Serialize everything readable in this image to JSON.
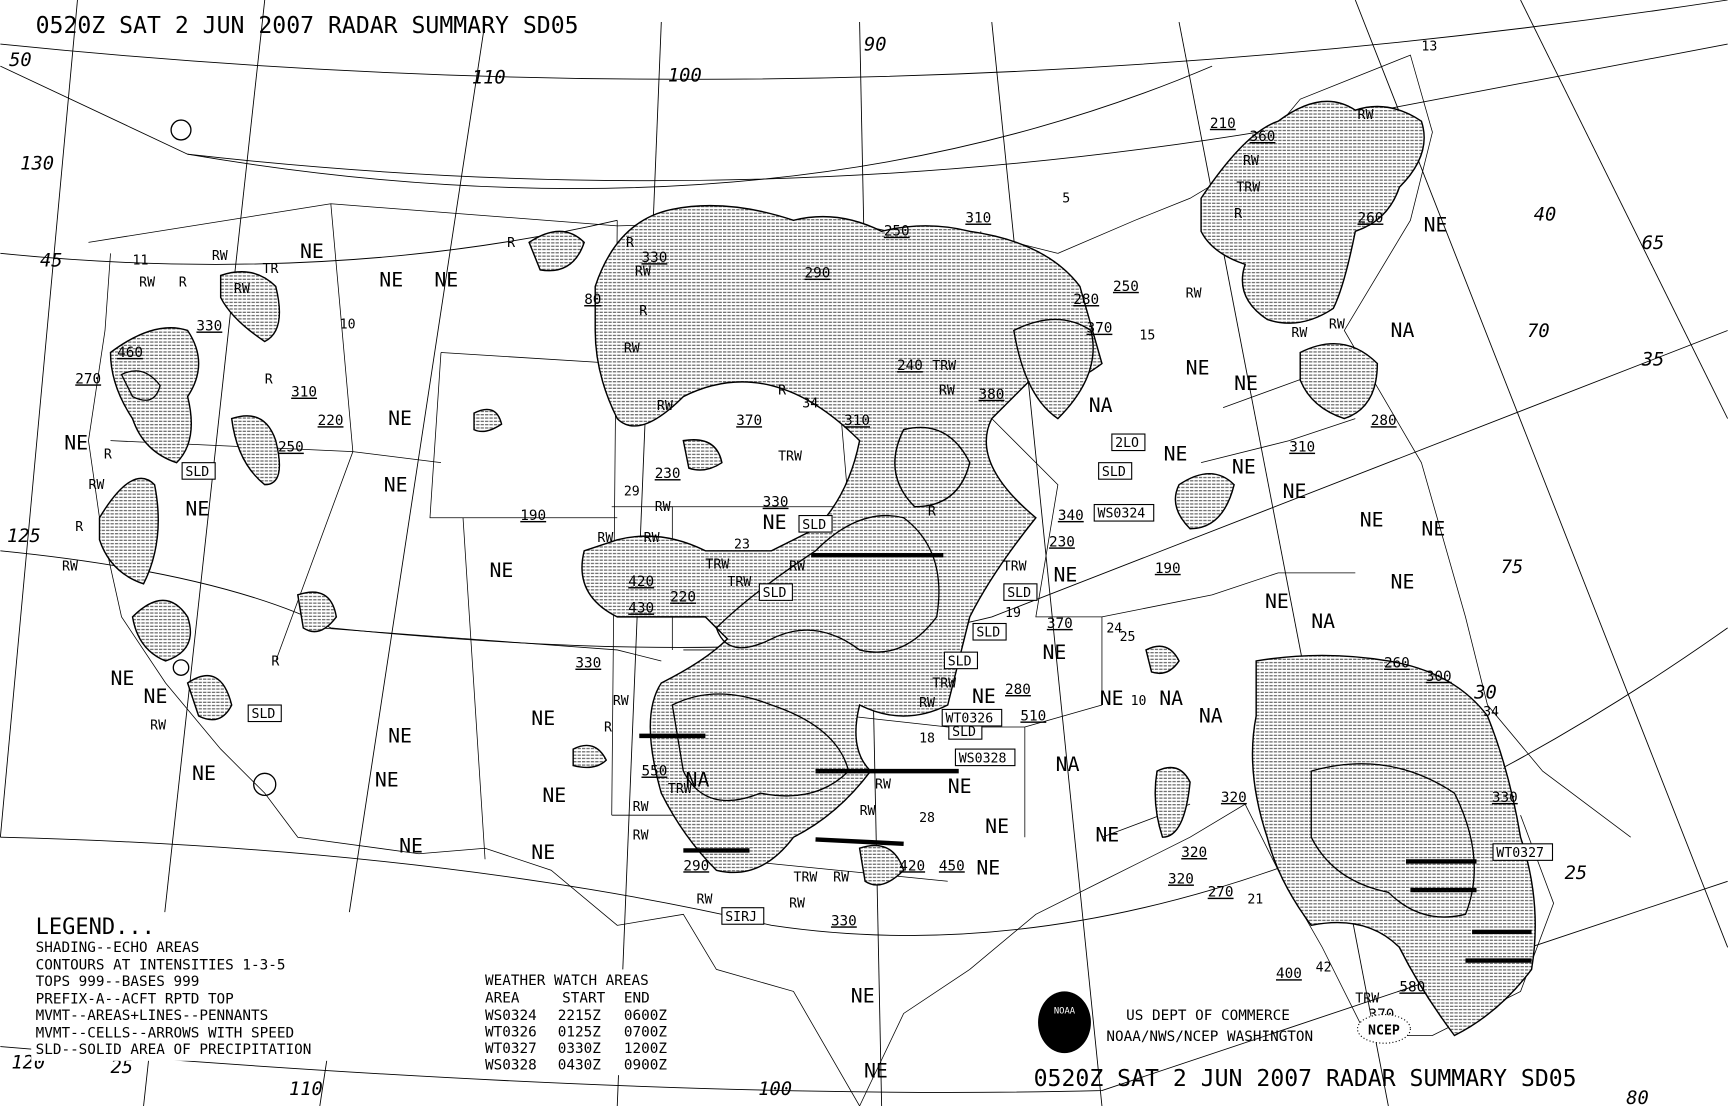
{
  "title": {
    "top": "0520Z SAT  2 JUN 2007 RADAR SUMMARY SD05",
    "bottom": "0520Z SAT  2 JUN 2007 RADAR SUMMARY SD05"
  },
  "legend": {
    "heading": "LEGEND...",
    "lines": [
      "SHADING--ECHO AREAS",
      "CONTOURS AT INTENSITIES 1-3-5",
      "TOPS 999--BASES 999",
      "PREFIX-A--ACFT RPTD TOP",
      "MVMT--AREAS+LINES--PENNANTS",
      "MVMT--CELLS--ARROWS WITH SPEED",
      "SLD--SOLID AREA OF PRECIPITATION"
    ]
  },
  "watch_table": {
    "heading": "WEATHER WATCH AREAS",
    "columns": [
      "AREA",
      "START",
      "END"
    ],
    "rows": [
      [
        "WS0324",
        "2215Z",
        "0600Z"
      ],
      [
        "WT0326",
        "0125Z",
        "0700Z"
      ],
      [
        "WT0327",
        "0330Z",
        "1200Z"
      ],
      [
        "WS0328",
        "0430Z",
        "0900Z"
      ]
    ]
  },
  "credits": {
    "logo": "NOAA",
    "line1": "US DEPT OF COMMERCE",
    "line2": "NOAA/NWS/NCEP WASHINGTON",
    "ncep_badge": "NCEP"
  },
  "coverage": {
    "no_echoes": "NE",
    "not_available": "NA",
    "ne_count": 38,
    "na_count": 7
  },
  "echo_tops": [
    "460",
    "270",
    "330",
    "310",
    "220",
    "250",
    "190",
    "80",
    "330",
    "290",
    "250",
    "310",
    "280",
    "250",
    "370",
    "240",
    "380",
    "370",
    "310",
    "230",
    "330",
    "340",
    "230",
    "420",
    "430",
    "220",
    "330",
    "190",
    "370",
    "280",
    "510",
    "550",
    "290",
    "330",
    "420",
    "450",
    "320",
    "320",
    "320",
    "270",
    "400",
    "580",
    "260",
    "300",
    "330",
    "310",
    "280",
    "260",
    "210",
    "360",
    "370"
  ],
  "precip_types": [
    "RW",
    "R",
    "RW",
    "TR",
    "RW",
    "R",
    "R",
    "RW",
    "R",
    "RW",
    "R",
    "RW",
    "R",
    "R",
    "RW",
    "R",
    "RW",
    "RW",
    "R",
    "TRW",
    "TRW",
    "RW",
    "TRW",
    "TRW",
    "RW",
    "RW",
    "RW",
    "RW",
    "R",
    "TRW",
    "TRW",
    "RW",
    "RW",
    "RW",
    "TRW",
    "RW",
    "RW",
    "RW",
    "R",
    "RW",
    "RW",
    "TRW",
    "RW",
    "RW",
    "R",
    "TRW",
    "RW",
    "RW",
    "RW",
    "RW",
    "TRW"
  ],
  "boxed_labels": [
    "SLD",
    "SLD",
    "SLD",
    "SLD",
    "SLD",
    "SLD",
    "SLD",
    "SLD",
    "SLD",
    "WS0324",
    "WT0326",
    "WS0328",
    "WT0327",
    "SIRJ",
    "2LO"
  ],
  "cell_speeds": [
    "11",
    "10",
    "34",
    "29",
    "23",
    "5",
    "15",
    "19",
    "24",
    "25",
    "10",
    "18",
    "28",
    "21",
    "42",
    "34",
    "13"
  ],
  "graticule_labels": [
    "50",
    "130",
    "45",
    "125",
    "120",
    "25",
    "110",
    "100",
    "90",
    "110",
    "100",
    "65",
    "70",
    "35",
    "40",
    "75",
    "30",
    "25",
    "80"
  ]
}
